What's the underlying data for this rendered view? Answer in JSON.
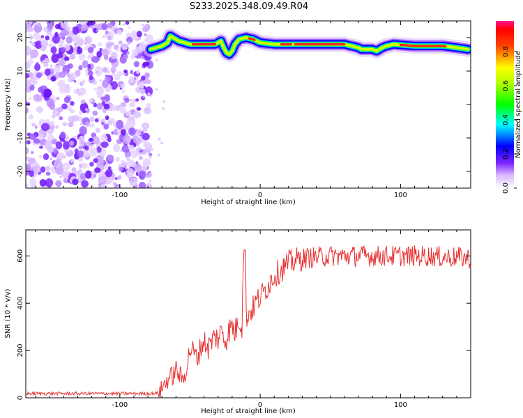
{
  "title": "S233.2025.348.09.49.R04",
  "chart_data": [
    {
      "type": "heatmap",
      "xlabel": "Height of straight line (km)",
      "ylabel": "Frequency (Hz)",
      "xlim": [
        -167,
        150
      ],
      "ylim": [
        -25,
        25
      ],
      "xticks": [
        -100,
        0,
        100
      ],
      "yticks": [
        -20,
        -10,
        0,
        10,
        20
      ],
      "colorbar": {
        "label": "Normalized spectral amplitude",
        "range": [
          0,
          0.98
        ],
        "ticks": [
          "0.0",
          "0.2",
          "0.4",
          "0.6",
          "0.8"
        ],
        "colors": [
          "#ffffff",
          "#7d26ff",
          "#0000ff",
          "#00ffff",
          "#00ff00",
          "#ffff00",
          "#ff0000",
          "#ff1493"
        ]
      },
      "noise_region_x": [
        -167,
        -78
      ],
      "ridge": {
        "x": [
          -78,
          -70,
          -66,
          -64,
          -62,
          -58,
          -50,
          -40,
          -32,
          -28,
          -26,
          -24,
          -22,
          -20,
          -18,
          -15,
          -10,
          -5,
          0,
          10,
          20,
          40,
          60,
          65,
          70,
          72,
          75,
          80,
          83,
          87,
          90,
          95,
          110,
          130,
          140,
          148
        ],
        "y": [
          16.5,
          17.5,
          18.5,
          20.5,
          20,
          19,
          18,
          18,
          18,
          19,
          17,
          15.5,
          15,
          16,
          18,
          19.5,
          20,
          19.5,
          18.5,
          18,
          18,
          18,
          18,
          17.5,
          17,
          16.5,
          16.5,
          16.5,
          16,
          17,
          17.5,
          18,
          17.5,
          17.5,
          17,
          16.5
        ]
      }
    },
    {
      "type": "line",
      "xlabel": "Height of straight line (km)",
      "ylabel": "SNR (10 * v/v)",
      "xlim": [
        -167,
        150
      ],
      "ylim": [
        0,
        710
      ],
      "xticks": [
        -100,
        0,
        100
      ],
      "yticks": [
        0,
        200,
        400,
        600
      ],
      "color": "#e83030",
      "series": [
        {
          "x": [
            -167,
            -150,
            -130,
            -110,
            -90,
            -80,
            -72,
            -68,
            -65,
            -62,
            -60,
            -58,
            -55,
            -52,
            -50,
            -47,
            -45,
            -42,
            -40,
            -37,
            -35,
            -32,
            -30,
            -27,
            -25,
            -22,
            -20,
            -18,
            -15,
            -13,
            -12,
            -11,
            -10,
            -8,
            -5,
            -3,
            0,
            3,
            5,
            8,
            10,
            15,
            20,
            25,
            30,
            40,
            50,
            60,
            70,
            80,
            90,
            100,
            110,
            120,
            130,
            140,
            150
          ],
          "y": [
            18,
            18,
            18,
            18,
            18,
            18,
            20,
            60,
            85,
            95,
            120,
            100,
            75,
            140,
            210,
            190,
            165,
            220,
            240,
            210,
            235,
            260,
            250,
            285,
            240,
            285,
            305,
            275,
            335,
            300,
            620,
            330,
            340,
            360,
            380,
            405,
            425,
            450,
            470,
            500,
            520,
            540,
            570,
            580,
            590,
            595,
            600,
            600,
            600,
            600,
            600,
            600,
            600,
            600,
            595,
            595,
            590
          ]
        }
      ]
    }
  ]
}
